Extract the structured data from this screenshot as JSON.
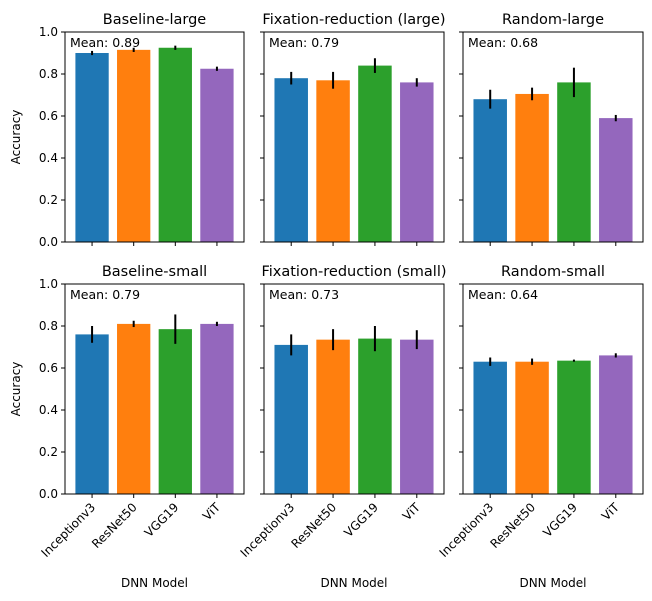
{
  "chart_data": {
    "type": "bar",
    "layout": "2x3 grid, shared y-axis per row",
    "categories": [
      "Inceptionv3",
      "ResNet50",
      "VGG19",
      "ViT"
    ],
    "colors": [
      "#1f77b4",
      "#ff7f0e",
      "#2ca02c",
      "#9467bd"
    ],
    "ylim": [
      0,
      1.0
    ],
    "yticks": [
      "0.0",
      "0.2",
      "0.4",
      "0.6",
      "0.8",
      "1.0"
    ],
    "ylabel": "Accuracy",
    "xlabel": "DNN Model",
    "grid": false,
    "panels": [
      {
        "title": "Baseline-large",
        "mean_label": "Mean: 0.89",
        "values": [
          0.9,
          0.915,
          0.925,
          0.825
        ],
        "errors": [
          0.01,
          0.01,
          0.01,
          0.01
        ]
      },
      {
        "title": "Fixation-reduction (large)",
        "mean_label": "Mean: 0.79",
        "values": [
          0.78,
          0.77,
          0.84,
          0.76
        ],
        "errors": [
          0.03,
          0.04,
          0.035,
          0.02
        ]
      },
      {
        "title": "Random-large",
        "mean_label": "Mean: 0.68",
        "values": [
          0.68,
          0.705,
          0.76,
          0.59
        ],
        "errors": [
          0.045,
          0.03,
          0.07,
          0.015
        ]
      },
      {
        "title": "Baseline-small",
        "mean_label": "Mean: 0.79",
        "values": [
          0.76,
          0.81,
          0.785,
          0.81
        ],
        "errors": [
          0.04,
          0.015,
          0.07,
          0.01
        ]
      },
      {
        "title": "Fixation-reduction (small)",
        "mean_label": "Mean: 0.73",
        "values": [
          0.71,
          0.735,
          0.74,
          0.735
        ],
        "errors": [
          0.05,
          0.05,
          0.06,
          0.045
        ]
      },
      {
        "title": "Random-small",
        "mean_label": "Mean: 0.64",
        "values": [
          0.63,
          0.63,
          0.635,
          0.66
        ],
        "errors": [
          0.02,
          0.015,
          0.005,
          0.01
        ]
      }
    ]
  }
}
